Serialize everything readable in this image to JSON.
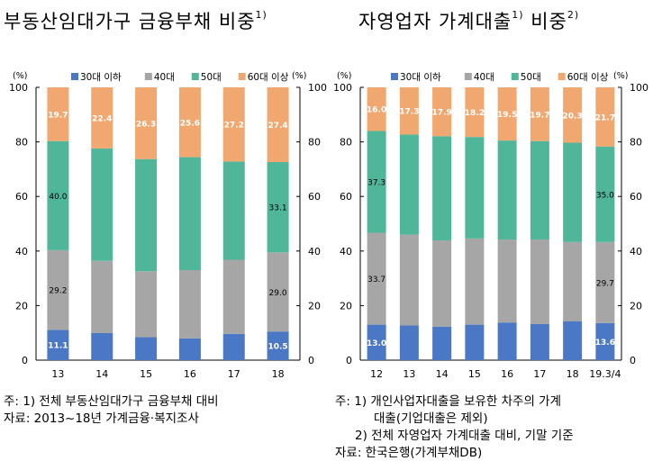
{
  "titles": [
    {
      "main": "부동산임대가구 금융부채 비중",
      "sup": "1)"
    },
    {
      "main": "자영업자 가계대출",
      "sup1": "1)",
      "mid": "비중",
      "sup2": "2)"
    }
  ],
  "colors": {
    "under30": "#4a78c4",
    "forties": "#a6a6a6",
    "fifties": "#4fb69a",
    "sixtyplus": "#f0a870"
  },
  "chart_data": [
    {
      "type": "bar",
      "stacked": true,
      "title": "부동산임대가구 금융부채 비중1)",
      "unit_left": "(%)",
      "unit_right": "(%)",
      "ylim": [
        0,
        100
      ],
      "yticks": [
        "0",
        "20",
        "40",
        "60",
        "80",
        "100"
      ],
      "categories": [
        "13",
        "14",
        "15",
        "16",
        "17",
        "18"
      ],
      "legend": [
        "30대 이하",
        "40대",
        "50대",
        "60대 이상"
      ],
      "series": [
        {
          "name": "30대 이하",
          "values": [
            11.1,
            9.9,
            8.4,
            8.0,
            9.6,
            10.5
          ]
        },
        {
          "name": "40대",
          "values": [
            29.2,
            26.5,
            24.2,
            25.0,
            27.2,
            29.0
          ]
        },
        {
          "name": "50대",
          "values": [
            40.0,
            41.2,
            41.1,
            41.4,
            36.0,
            33.1
          ]
        },
        {
          "name": "60대 이상",
          "values": [
            19.7,
            22.4,
            26.3,
            25.6,
            27.2,
            27.4
          ]
        }
      ],
      "labels": [
        [
          "11.1",
          "",
          "",
          "",
          "",
          "10.5"
        ],
        [
          "29.2",
          "",
          "",
          "",
          "",
          "29.0"
        ],
        [
          "40.0",
          "",
          "",
          "",
          "",
          "33.1"
        ],
        [
          "19.7",
          "22.4",
          "26.3",
          "25.6",
          "27.2",
          "27.4"
        ]
      ]
    },
    {
      "type": "bar",
      "stacked": true,
      "title": "자영업자 가계대출1) 비중2)",
      "unit_left": "(%)",
      "unit_right": "(%)",
      "ylim": [
        0,
        100
      ],
      "yticks": [
        "0",
        "20",
        "40",
        "60",
        "80",
        "100"
      ],
      "categories": [
        "12",
        "13",
        "14",
        "15",
        "16",
        "17",
        "18",
        "19.3/4"
      ],
      "legend": [
        "30대 이하",
        "40대",
        "50대",
        "60대 이상"
      ],
      "series": [
        {
          "name": "30대 이하",
          "values": [
            13.0,
            12.7,
            12.3,
            13.0,
            13.8,
            13.2,
            14.3,
            13.6
          ]
        },
        {
          "name": "40대",
          "values": [
            33.7,
            33.3,
            31.6,
            31.6,
            30.4,
            31.0,
            29.0,
            29.7
          ]
        },
        {
          "name": "50대",
          "values": [
            37.3,
            36.7,
            38.2,
            37.2,
            36.3,
            36.1,
            36.4,
            35.0
          ]
        },
        {
          "name": "60대 이상",
          "values": [
            16.0,
            17.3,
            17.9,
            18.2,
            19.5,
            19.7,
            20.3,
            21.7
          ]
        }
      ],
      "labels": [
        [
          "13.0",
          "",
          "",
          "",
          "",
          "",
          "",
          "13.6"
        ],
        [
          "33.7",
          "",
          "",
          "",
          "",
          "",
          "",
          "29.7"
        ],
        [
          "37.3",
          "",
          "",
          "",
          "",
          "",
          "",
          "35.0"
        ],
        [
          "16.0",
          "17.3",
          "17.9",
          "18.2",
          "19.5",
          "19.7",
          "20.3",
          "21.7"
        ]
      ]
    }
  ],
  "notes_left": [
    "주: 1) 전체 부동산임대가구 금융부채 대비",
    "자료: 2013~18년 가계금융·복지조사"
  ],
  "notes_right": [
    "주: 1) 개인사업자대출을 보유한 차주의 가계",
    "대출(기업대출은 제외)",
    "2) 전체 자영업자 가계대출 대비, 기말 기준",
    "자료: 한국은행(가계부채DB)"
  ]
}
